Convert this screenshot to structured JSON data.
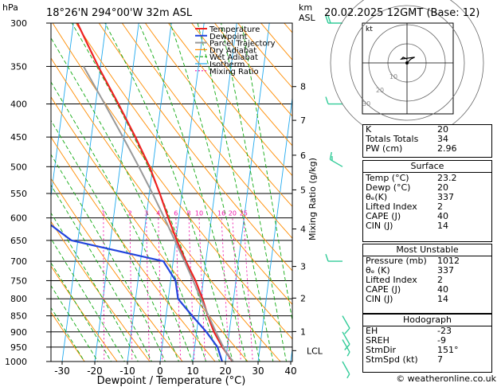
{
  "header": {
    "hpa": "hPa",
    "location": "18°26'N  294°00'W  32m  ASL",
    "km": "km",
    "asl": "ASL",
    "date": "20.02.2025  12GMT  (Base: 12)"
  },
  "colors": {
    "temperature": "#ee2222",
    "dewpoint": "#2244dd",
    "parcel": "#999999",
    "dry_adiabat": "#ff8c00",
    "wet_adiabat": "#11aa11",
    "isotherm": "#22aaee",
    "mixing_ratio": "#ee11aa",
    "wind": "#33cc99"
  },
  "chart_data": {
    "type": "line",
    "title": "",
    "xlabel": "Dewpoint / Temperature (°C)",
    "ylabel_right": "Mixing Ratio (g/kg)",
    "xlim": [
      -35,
      40
    ],
    "ylim_hpa": [
      1000,
      300
    ],
    "skew": "skew-T log-p",
    "x_ticks": [
      "-30",
      "-20",
      "-10",
      "0",
      "10",
      "20",
      "30",
      "40"
    ],
    "p_ticks": [
      "300",
      "350",
      "400",
      "450",
      "500",
      "550",
      "600",
      "650",
      "700",
      "750",
      "800",
      "850",
      "900",
      "950",
      "1000"
    ],
    "km_ticks": [
      {
        "label": "8",
        "p": 376
      },
      {
        "label": "7",
        "p": 424
      },
      {
        "label": "6",
        "p": 480
      },
      {
        "label": "5",
        "p": 543
      },
      {
        "label": "4",
        "p": 624
      },
      {
        "label": "3",
        "p": 713
      },
      {
        "label": "2",
        "p": 798
      },
      {
        "label": "1",
        "p": 899
      },
      {
        "label": "LCL",
        "p": 962
      }
    ],
    "mixing_ratio_labels": [
      "1",
      "2",
      "3",
      "4",
      "6",
      "8",
      "10",
      "16",
      "20",
      "25"
    ],
    "series": [
      {
        "name": "Temperature",
        "points": [
          [
            1012,
            23.2
          ],
          [
            1000,
            22.2
          ],
          [
            950,
            18.5
          ],
          [
            900,
            15.3
          ],
          [
            850,
            12.8
          ],
          [
            800,
            10.5
          ],
          [
            750,
            7.6
          ],
          [
            700,
            3.9
          ],
          [
            650,
            0.3
          ],
          [
            600,
            -3.2
          ],
          [
            550,
            -6.8
          ],
          [
            500,
            -11.0
          ],
          [
            450,
            -16.5
          ],
          [
            400,
            -23.0
          ],
          [
            350,
            -30.7
          ],
          [
            300,
            -38.8
          ]
        ]
      },
      {
        "name": "Dewpoint",
        "points": [
          [
            1012,
            20.0
          ],
          [
            1000,
            19.0
          ],
          [
            950,
            17.0
          ],
          [
            900,
            13.0
          ],
          [
            850,
            8.0
          ],
          [
            800,
            3.0
          ],
          [
            750,
            1.5
          ],
          [
            700,
            -3.0
          ],
          [
            650,
            -32.0
          ],
          [
            600,
            -42.0
          ],
          [
            550,
            -46.0
          ],
          [
            500,
            -51.0
          ],
          [
            450,
            -57.0
          ],
          [
            400,
            -60.0
          ],
          [
            350,
            -60.0
          ],
          [
            300,
            -59.0
          ]
        ]
      },
      {
        "name": "Parcel Trajectory",
        "points": [
          [
            1012,
            23.2
          ],
          [
            962,
            19.5
          ],
          [
            900,
            15.9
          ],
          [
            850,
            13.0
          ],
          [
            800,
            10.0
          ],
          [
            750,
            6.9
          ],
          [
            700,
            3.5
          ],
          [
            650,
            -0.3
          ],
          [
            600,
            -4.4
          ],
          [
            550,
            -9.0
          ],
          [
            500,
            -14.3
          ],
          [
            450,
            -20.3
          ],
          [
            400,
            -27.2
          ],
          [
            350,
            -35.2
          ]
        ]
      }
    ],
    "legend": [
      "Temperature",
      "Dewpoint",
      "Parcel Trajectory",
      "Dry Adiabat",
      "Wet Adiabat",
      "Isotherm",
      "Mixing Ratio"
    ],
    "legend_position": "top-left",
    "wind_barbs": [
      {
        "p": 300,
        "dir": 270,
        "kt": 20
      },
      {
        "p": 400,
        "dir": 270,
        "kt": 10
      },
      {
        "p": 500,
        "dir": 300,
        "kt": 15
      },
      {
        "p": 700,
        "dir": 270,
        "kt": 10
      },
      {
        "p": 850,
        "dir": 150,
        "kt": 10
      },
      {
        "p": 900,
        "dir": 150,
        "kt": 10
      },
      {
        "p": 925,
        "dir": 150,
        "kt": 5
      },
      {
        "p": 1000,
        "dir": 151,
        "kt": 7
      }
    ]
  },
  "hodograph": {
    "label": "kt",
    "ring_labels": [
      "10",
      "20",
      "30"
    ],
    "points_kt": [
      [
        0,
        0
      ],
      [
        2,
        2
      ],
      [
        4,
        3
      ],
      [
        -3,
        2
      ],
      [
        -2,
        3
      ],
      [
        0,
        2
      ]
    ]
  },
  "indices": {
    "top": [
      {
        "label": "K",
        "value": "20"
      },
      {
        "label": "Totals Totals",
        "value": "34"
      },
      {
        "label": "PW (cm)",
        "value": "2.96"
      }
    ],
    "surface_title": "Surface",
    "surface": [
      {
        "label": "Temp (°C)",
        "value": "23.2"
      },
      {
        "label": "Dewp (°C)",
        "value": "20"
      },
      {
        "label": "θₑ(K)",
        "value": "337"
      },
      {
        "label": "Lifted Index",
        "value": "2"
      },
      {
        "label": "CAPE (J)",
        "value": "40"
      },
      {
        "label": "CIN (J)",
        "value": "14"
      }
    ],
    "unstable_title": "Most Unstable",
    "unstable": [
      {
        "label": "Pressure (mb)",
        "value": "1012"
      },
      {
        "label": "θₑ (K)",
        "value": "337"
      },
      {
        "label": "Lifted Index",
        "value": "2"
      },
      {
        "label": "CAPE (J)",
        "value": "40"
      },
      {
        "label": "CIN (J)",
        "value": "14"
      }
    ],
    "hodo_title": "Hodograph",
    "hodo": [
      {
        "label": "EH",
        "value": "-23"
      },
      {
        "label": "SREH",
        "value": "-9"
      },
      {
        "label": "StmDir",
        "value": "151°"
      },
      {
        "label": "StmSpd (kt)",
        "value": "7"
      }
    ]
  },
  "copyright": "© weatheronline.co.uk"
}
